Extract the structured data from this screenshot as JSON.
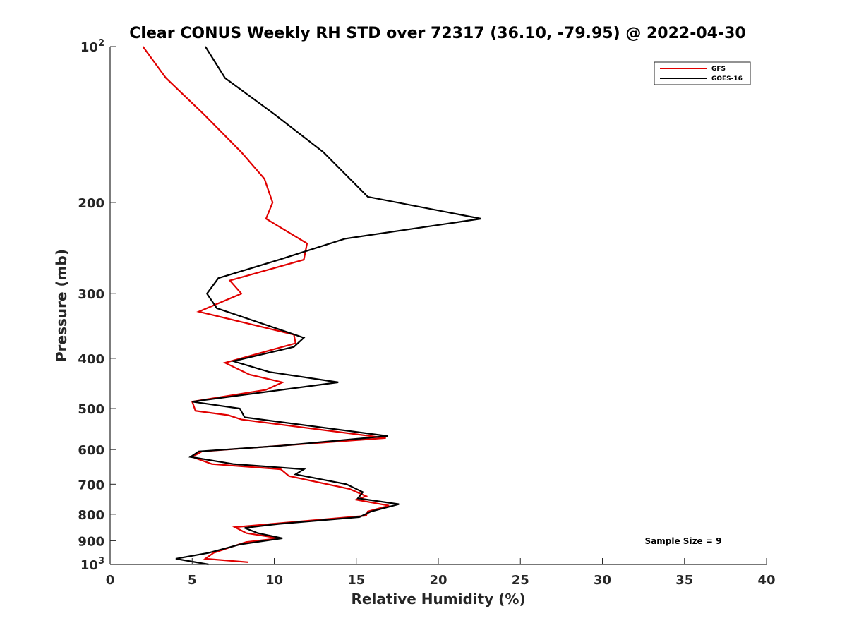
{
  "chart_data": {
    "type": "line",
    "title": "Clear CONUS Weekly RH STD over 72317 (36.10, -79.95) @ 2022-04-30",
    "xlabel": "Relative Humidity (%)",
    "ylabel": "Pressure (mb)",
    "xlim": [
      0,
      40
    ],
    "ylim": [
      1000,
      100
    ],
    "yscale": "log",
    "y_reversed": true,
    "grid": false,
    "legend_position": "top-right",
    "annotation": "Sample Size = 9",
    "x_ticks": [
      "0",
      "5",
      "10",
      "15",
      "20",
      "25",
      "30",
      "35",
      "40"
    ],
    "y_ticks": [
      {
        "value": 100,
        "label": "10",
        "sup": "2"
      },
      {
        "value": 200,
        "label": "200",
        "sup": ""
      },
      {
        "value": 300,
        "label": "300",
        "sup": ""
      },
      {
        "value": 400,
        "label": "400",
        "sup": ""
      },
      {
        "value": 500,
        "label": "500",
        "sup": ""
      },
      {
        "value": 600,
        "label": "600",
        "sup": ""
      },
      {
        "value": 700,
        "label": "700",
        "sup": ""
      },
      {
        "value": 800,
        "label": "800",
        "sup": ""
      },
      {
        "value": 900,
        "label": "900",
        "sup": ""
      },
      {
        "value": 1000,
        "label": "10",
        "sup": "3"
      }
    ],
    "series": [
      {
        "name": "GFS",
        "color": "#e00000",
        "x": [
          2.0,
          3.4,
          5.7,
          8.0,
          9.4,
          9.9,
          9.5,
          12.0,
          11.8,
          7.3,
          8.0,
          5.4,
          11.2,
          11.3,
          7.0,
          8.5,
          10.5,
          9.5,
          5.0,
          5.2,
          7.2,
          8.0,
          16.8,
          5.6,
          5.0,
          6.2,
          10.4,
          10.9,
          14.6,
          15.6,
          15.0,
          17.0,
          15.7,
          15.6,
          7.6,
          8.3,
          10.3,
          8.3,
          7.6,
          6.3,
          5.8,
          8.4
        ],
        "y": [
          100,
          115,
          135,
          160,
          180,
          200,
          215,
          240,
          258,
          283,
          300,
          325,
          360,
          374,
          408,
          430,
          445,
          460,
          485,
          505,
          515,
          525,
          570,
          605,
          620,
          640,
          655,
          675,
          715,
          738,
          750,
          770,
          790,
          805,
          847,
          870,
          890,
          905,
          920,
          950,
          975,
          990
        ]
      },
      {
        "name": "GOES-16",
        "color": "#000000",
        "x": [
          5.8,
          7.0,
          10.0,
          13.0,
          15.7,
          22.6,
          14.3,
          10.3,
          6.6,
          5.9,
          6.5,
          11.8,
          11.2,
          7.5,
          9.7,
          13.9,
          5.0,
          7.9,
          8.2,
          16.9,
          10.4,
          5.4,
          4.9,
          7.5,
          11.8,
          11.3,
          14.4,
          15.4,
          15.1,
          17.6,
          15.9,
          15.2,
          10.3,
          8.2,
          9.0,
          10.5,
          7.9,
          6.0,
          4.0,
          6.0
        ],
        "y": [
          100,
          115,
          135,
          160,
          195,
          215,
          235,
          258,
          280,
          300,
          320,
          365,
          380,
          405,
          425,
          445,
          485,
          500,
          520,
          565,
          590,
          605,
          620,
          640,
          655,
          670,
          700,
          725,
          745,
          765,
          790,
          810,
          835,
          850,
          870,
          890,
          915,
          950,
          975,
          1000
        ]
      }
    ]
  }
}
